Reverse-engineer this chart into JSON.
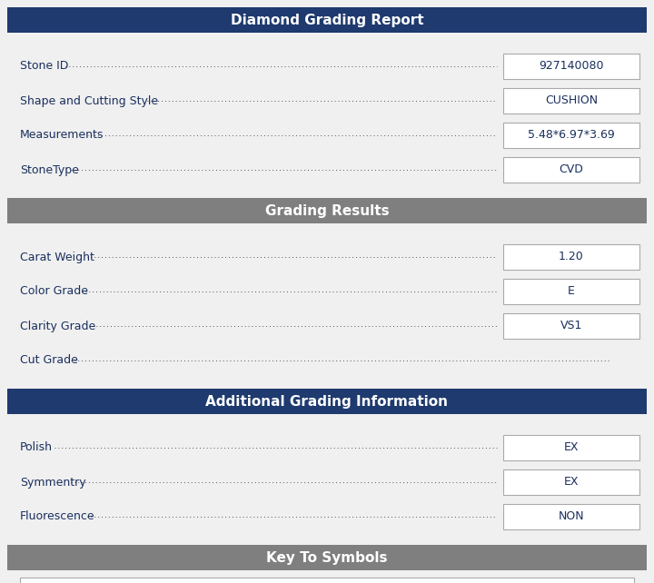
{
  "title": "Diamond Grading Report",
  "title_bg": "#1e3a6e",
  "title_color": "#ffffff",
  "section2_title": "Grading Results",
  "section2_bg": "#7f7f7f",
  "section2_color": "#ffffff",
  "section3_title": "Additional Grading Information",
  "section3_bg": "#1e3a6e",
  "section3_color": "#ffffff",
  "section4_title": "Key To Symbols",
  "section4_bg": "#7f7f7f",
  "section4_color": "#ffffff",
  "bg_color": "#f0f0f0",
  "text_color": "#1a2f5e",
  "box_border_color": "#aaaaaa",
  "rows_section1": [
    {
      "label": "Stone ID",
      "dots": true,
      "value": "927140080"
    },
    {
      "label": "Shape and Cutting Style",
      "dots": true,
      "value": "CUSHION"
    },
    {
      "label": "Measurements",
      "dots": true,
      "value": "5.48*6.97*3.69"
    },
    {
      "label": "StoneType",
      "dots": true,
      "value": "CVD"
    }
  ],
  "rows_section2": [
    {
      "label": "Carat Weight",
      "dots": true,
      "value": "1.20"
    },
    {
      "label": "Color Grade",
      "dots": true,
      "value": "E"
    },
    {
      "label": "Clarity Grade",
      "dots": true,
      "value": "VS1"
    },
    {
      "label": "Cut Grade",
      "dots": true,
      "value": null
    }
  ],
  "rows_section3": [
    {
      "label": "Polish",
      "dots": true,
      "value": "EX"
    },
    {
      "label": "Symmentry",
      "dots": true,
      "value": "EX"
    },
    {
      "label": "Fluorescence",
      "dots": true,
      "value": "NON"
    }
  ],
  "figw": 7.2,
  "figh": 6.42,
  "dpi": 100
}
